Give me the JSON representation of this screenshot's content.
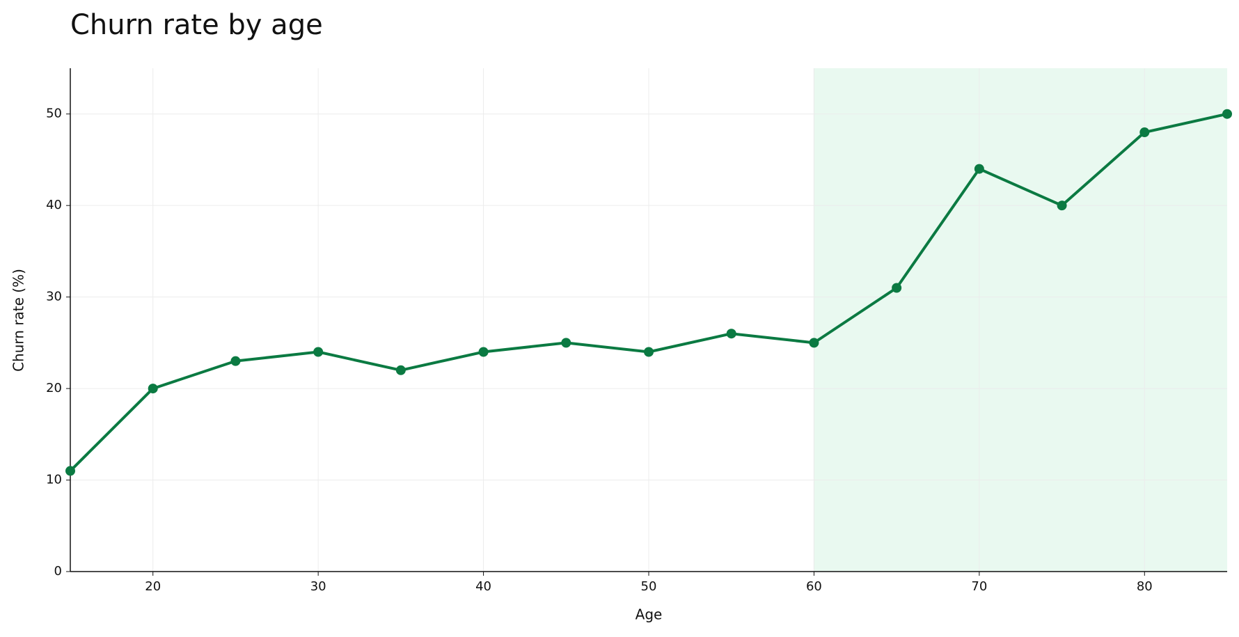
{
  "chart_data": {
    "type": "line",
    "title": "Churn rate by age",
    "xlabel": "Age",
    "ylabel": "Churn rate (%)",
    "x": [
      15,
      20,
      25,
      30,
      35,
      40,
      45,
      50,
      55,
      60,
      65,
      70,
      75,
      80,
      85
    ],
    "series": [
      {
        "name": "Churn rate",
        "color": "#0b7a42",
        "values": [
          11,
          20,
          23,
          24,
          22,
          24,
          25,
          24,
          26,
          25,
          31,
          44,
          40,
          48,
          50
        ]
      }
    ],
    "xlim": [
      15,
      85
    ],
    "ylim": [
      0,
      55
    ],
    "xticks": [
      20,
      30,
      40,
      50,
      60,
      70,
      80
    ],
    "yticks": [
      0,
      10,
      20,
      30,
      40,
      50
    ],
    "grid": true,
    "shaded_xrange": [
      60,
      85
    ],
    "shade_color": "#e9f9f0"
  }
}
